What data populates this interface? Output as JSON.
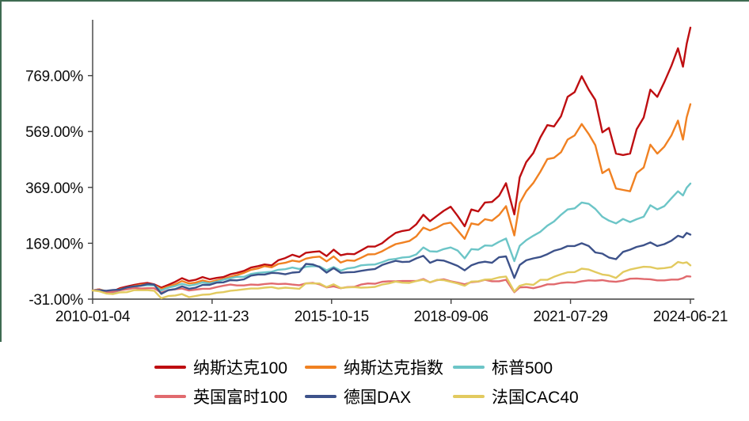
{
  "frame": {
    "border_color": "#3E6B51"
  },
  "chart_data": {
    "type": "line",
    "title": "",
    "xlabel": "",
    "ylabel": "",
    "grid": false,
    "legend_position": "bottom",
    "xlim": [
      2010.01,
      2024.47
    ],
    "ylim": [
      -31,
      969
    ],
    "yticks": [
      {
        "label": "-31.00%",
        "v": -31
      },
      {
        "label": "169.00%",
        "v": 169
      },
      {
        "label": "369.00%",
        "v": 369
      },
      {
        "label": "569.00%",
        "v": 569
      },
      {
        "label": "769.00%",
        "v": 769
      }
    ],
    "xticks": [
      {
        "label": "2010-01-04",
        "t": 2010.01
      },
      {
        "label": "2012-11-23",
        "t": 2012.9
      },
      {
        "label": "2015-10-15",
        "t": 2015.79
      },
      {
        "label": "2018-09-06",
        "t": 2018.68
      },
      {
        "label": "2021-07-29",
        "t": 2021.57
      },
      {
        "label": "2024-06-21",
        "t": 2024.47
      }
    ],
    "x": [
      2010.01,
      2010.17,
      2010.34,
      2010.5,
      2010.67,
      2010.84,
      2011.01,
      2011.17,
      2011.34,
      2011.5,
      2011.67,
      2011.84,
      2012.01,
      2012.17,
      2012.34,
      2012.5,
      2012.67,
      2012.84,
      2013.01,
      2013.17,
      2013.34,
      2013.5,
      2013.67,
      2013.84,
      2014.01,
      2014.17,
      2014.34,
      2014.5,
      2014.67,
      2014.84,
      2015.01,
      2015.17,
      2015.34,
      2015.5,
      2015.67,
      2015.84,
      2016.01,
      2016.17,
      2016.34,
      2016.5,
      2016.67,
      2016.84,
      2017.01,
      2017.17,
      2017.34,
      2017.5,
      2017.67,
      2017.84,
      2018.01,
      2018.17,
      2018.34,
      2018.5,
      2018.67,
      2018.84,
      2019.01,
      2019.17,
      2019.34,
      2019.5,
      2019.67,
      2019.84,
      2020.01,
      2020.21,
      2020.34,
      2020.5,
      2020.67,
      2020.84,
      2021.01,
      2021.17,
      2021.34,
      2021.5,
      2021.67,
      2021.84,
      2022.01,
      2022.17,
      2022.34,
      2022.5,
      2022.67,
      2022.84,
      2023.01,
      2023.17,
      2023.34,
      2023.5,
      2023.67,
      2023.84,
      2024.01,
      2024.17,
      2024.29,
      2024.38,
      2024.47
    ],
    "series": [
      {
        "name": "纳斯达克100",
        "color": "#BE0E11",
        "values": [
          0,
          4,
          -4,
          -3,
          8,
          14,
          20,
          24,
          27,
          22,
          10,
          20,
          31,
          44,
          34,
          38,
          48,
          40,
          45,
          48,
          58,
          63,
          70,
          82,
          87,
          93,
          90,
          108,
          116,
          128,
          120,
          135,
          138,
          140,
          123,
          146,
          126,
          131,
          130,
          143,
          157,
          157,
          169,
          188,
          206,
          213,
          217,
          237,
          271,
          248,
          267,
          285,
          300,
          267,
          230,
          290,
          283,
          315,
          317,
          339,
          384,
          272,
          405,
          460,
          492,
          548,
          592,
          587,
          624,
          693,
          710,
          767,
          719,
          682,
          566,
          582,
          490,
          485,
          490,
          577,
          619,
          719,
          693,
          746,
          804,
          867,
          801,
          883,
          941
        ]
      },
      {
        "name": "纳斯达克指数",
        "color": "#F08122",
        "values": [
          0,
          4,
          -3,
          -4,
          4,
          10,
          16,
          20,
          23,
          19,
          5,
          14,
          22,
          34,
          25,
          28,
          36,
          30,
          36,
          41,
          49,
          55,
          63,
          74,
          79,
          87,
          83,
          95,
          99,
          107,
          103,
          114,
          119,
          121,
          104,
          122,
          100,
          108,
          106,
          117,
          129,
          130,
          140,
          153,
          166,
          171,
          177,
          194,
          225,
          215,
          225,
          238,
          243,
          215,
          185,
          240,
          235,
          255,
          250,
          270,
          302,
          197,
          313,
          355,
          385,
          425,
          470,
          475,
          495,
          540,
          555,
          596,
          560,
          520,
          420,
          435,
          365,
          360,
          355,
          420,
          440,
          522,
          490,
          515,
          555,
          608,
          540,
          620,
          667
        ]
      },
      {
        "name": "标普500",
        "color": "#6CC5C7",
        "values": [
          0,
          3,
          -4,
          -8,
          1,
          5,
          13,
          17,
          19,
          18,
          0,
          10,
          16,
          24,
          17,
          21,
          29,
          25,
          31,
          38,
          44,
          49,
          49,
          59,
          63,
          65,
          67,
          74,
          76,
          82,
          77,
          85,
          87,
          86,
          72,
          84,
          71,
          79,
          82,
          90,
          92,
          93,
          101,
          110,
          113,
          118,
          120,
          129,
          154,
          140,
          139,
          148,
          154,
          143,
          115,
          148,
          146,
          161,
          160,
          174,
          186,
          105,
          160,
          180,
          196,
          210,
          232,
          247,
          271,
          290,
          294,
          315,
          310,
          292,
          264,
          250,
          240,
          256,
          245,
          255,
          264,
          305,
          290,
          302,
          330,
          355,
          340,
          368,
          383
        ]
      },
      {
        "name": "英国富时100",
        "color": "#E16A6E",
        "values": [
          0,
          3,
          -7,
          -5,
          1,
          4,
          9,
          7,
          8,
          8,
          -8,
          1,
          4,
          7,
          0,
          3,
          6,
          6,
          12,
          17,
          21,
          18,
          18,
          21,
          20,
          23,
          25,
          23,
          24,
          21,
          19,
          25,
          27,
          22,
          11,
          15,
          8,
          12,
          13,
          21,
          25,
          24,
          31,
          33,
          33,
          34,
          34,
          34,
          41,
          29,
          37,
          40,
          33,
          28,
          22,
          30,
          32,
          38,
          33,
          33,
          38,
          -6,
          11,
          12,
          8,
          14,
          22,
          22,
          27,
          29,
          28,
          33,
          36,
          35,
          37,
          33,
          31,
          35,
          42,
          43,
          41,
          40,
          36,
          36,
          39,
          39,
          44,
          51,
          50
        ]
      },
      {
        "name": "德国DAX",
        "color": "#3D528A",
        "values": [
          0,
          1,
          -1,
          2,
          3,
          11,
          15,
          17,
          23,
          21,
          -12,
          1,
          5,
          15,
          6,
          10,
          20,
          20,
          28,
          29,
          37,
          36,
          40,
          53,
          57,
          57,
          63,
          62,
          58,
          64,
          66,
          95,
          93,
          84,
          64,
          80,
          63,
          65,
          66,
          70,
          74,
          77,
          91,
          99,
          106,
          102,
          103,
          115,
          124,
          99,
          109,
          107,
          98,
          88,
          72,
          90,
          99,
          103,
          99,
          119,
          122,
          45,
          91,
          108,
          115,
          120,
          130,
          142,
          149,
          159,
          159,
          169,
          159,
          136,
          132,
          118,
          112,
          138,
          146,
          156,
          162,
          172,
          159,
          166,
          178,
          196,
          190,
          206,
          200
        ]
      },
      {
        "name": "法国CAC40",
        "color": "#E2CA5F",
        "values": [
          0,
          -3,
          -11,
          -13,
          -7,
          -6,
          1,
          1,
          1,
          -1,
          -28,
          -20,
          -18,
          -13,
          -24,
          -20,
          -15,
          -14,
          -8,
          -6,
          -1,
          1,
          4,
          7,
          7,
          10,
          12,
          7,
          10,
          8,
          6,
          26,
          25,
          25,
          12,
          22,
          9,
          11,
          12,
          10,
          11,
          13,
          21,
          25,
          32,
          28,
          27,
          34,
          38,
          29,
          38,
          37,
          31,
          25,
          17,
          32,
          33,
          39,
          40,
          47,
          50,
          -4,
          17,
          23,
          20,
          38,
          38,
          49,
          58,
          65,
          66,
          78,
          75,
          66,
          57,
          54,
          45,
          66,
          75,
          80,
          85,
          84,
          78,
          80,
          84,
          102,
          98,
          101,
          90
        ]
      }
    ]
  }
}
